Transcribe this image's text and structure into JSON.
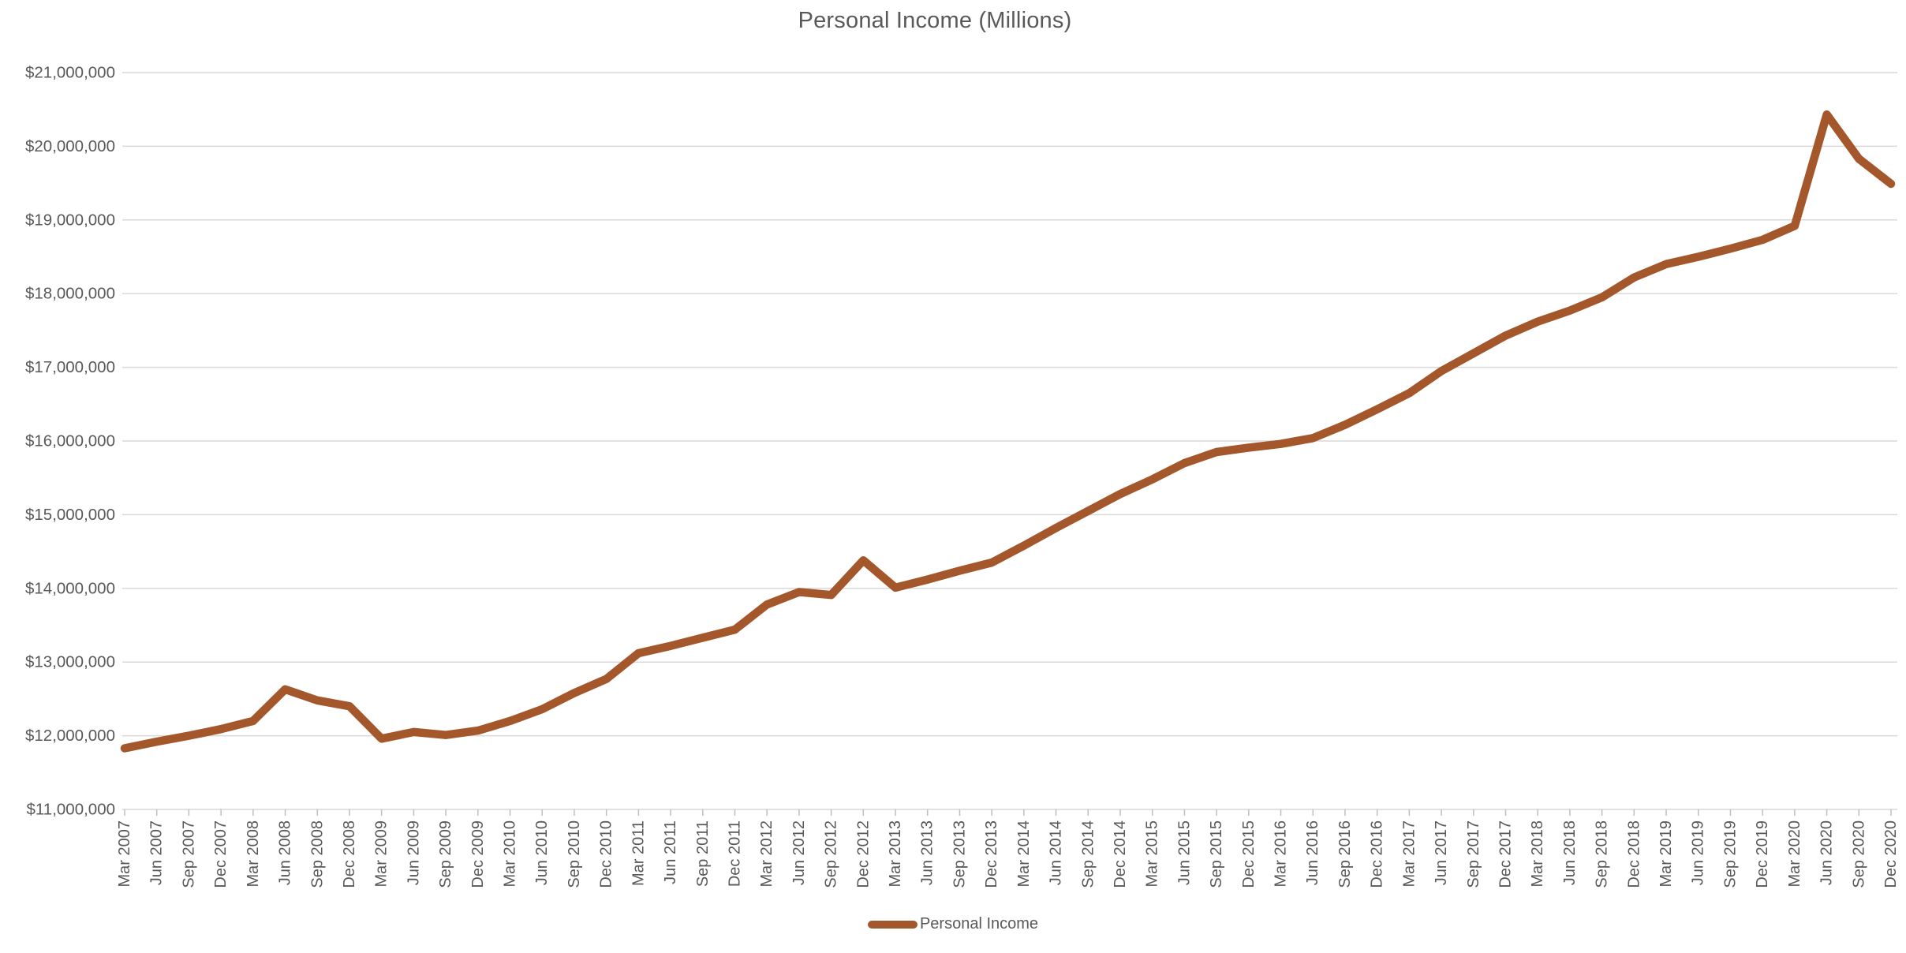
{
  "title": "Personal Income (Millions)",
  "legend": {
    "label": "Personal Income"
  },
  "colors": {
    "line": "#A4572A",
    "text": "#595959",
    "gridline": "#D9D9D9",
    "tick": "#BFBFBF"
  },
  "y_axis": {
    "tick_labels": [
      "$11,000,000",
      "$12,000,000",
      "$13,000,000",
      "$14,000,000",
      "$15,000,000",
      "$16,000,000",
      "$17,000,000",
      "$18,000,000",
      "$19,000,000",
      "$20,000,000",
      "$21,000,000"
    ]
  },
  "chart_data": {
    "type": "line",
    "title": "Personal Income (Millions)",
    "xlabel": "",
    "ylabel": "",
    "ylim": [
      11000000,
      21000000
    ],
    "ytick_interval": 1000000,
    "grid": "horizontal",
    "legend_position": "bottom",
    "x": [
      "Mar 2007",
      "Jun 2007",
      "Sep 2007",
      "Dec 2007",
      "Mar 2008",
      "Jun 2008",
      "Sep 2008",
      "Dec 2008",
      "Mar 2009",
      "Jun 2009",
      "Sep 2009",
      "Dec 2009",
      "Mar 2010",
      "Jun 2010",
      "Sep 2010",
      "Dec 2010",
      "Mar 2011",
      "Jun 2011",
      "Sep 2011",
      "Dec 2011",
      "Mar 2012",
      "Jun 2012",
      "Sep 2012",
      "Dec 2012",
      "Mar 2013",
      "Jun 2013",
      "Sep 2013",
      "Dec 2013",
      "Mar 2014",
      "Jun 2014",
      "Sep 2014",
      "Dec 2014",
      "Mar 2015",
      "Jun 2015",
      "Sep 2015",
      "Dec 2015",
      "Mar 2016",
      "Jun 2016",
      "Sep 2016",
      "Dec 2016",
      "Mar 2017",
      "Jun 2017",
      "Sep 2017",
      "Dec 2017",
      "Mar 2018",
      "Jun 2018",
      "Sep 2018",
      "Dec 2018",
      "Mar 2019",
      "Jun 2019",
      "Sep 2019",
      "Dec 2019",
      "Mar 2020",
      "Jun 2020",
      "Sep 2020",
      "Dec 2020"
    ],
    "series": [
      {
        "name": "Personal Income",
        "values": [
          11830000,
          11920000,
          12000000,
          12090000,
          12200000,
          12630000,
          12480000,
          12400000,
          11960000,
          12050000,
          12010000,
          12070000,
          12200000,
          12360000,
          12580000,
          12770000,
          13120000,
          13220000,
          13330000,
          13440000,
          13780000,
          13950000,
          13910000,
          14380000,
          14010000,
          14120000,
          14240000,
          14350000,
          14580000,
          14820000,
          15050000,
          15280000,
          15480000,
          15700000,
          15850000,
          15910000,
          15960000,
          16040000,
          16220000,
          16430000,
          16650000,
          16950000,
          17190000,
          17430000,
          17620000,
          17770000,
          17950000,
          18220000,
          18400000,
          18500000,
          18610000,
          18730000,
          18920000,
          20430000,
          19830000,
          19490000
        ]
      }
    ]
  }
}
